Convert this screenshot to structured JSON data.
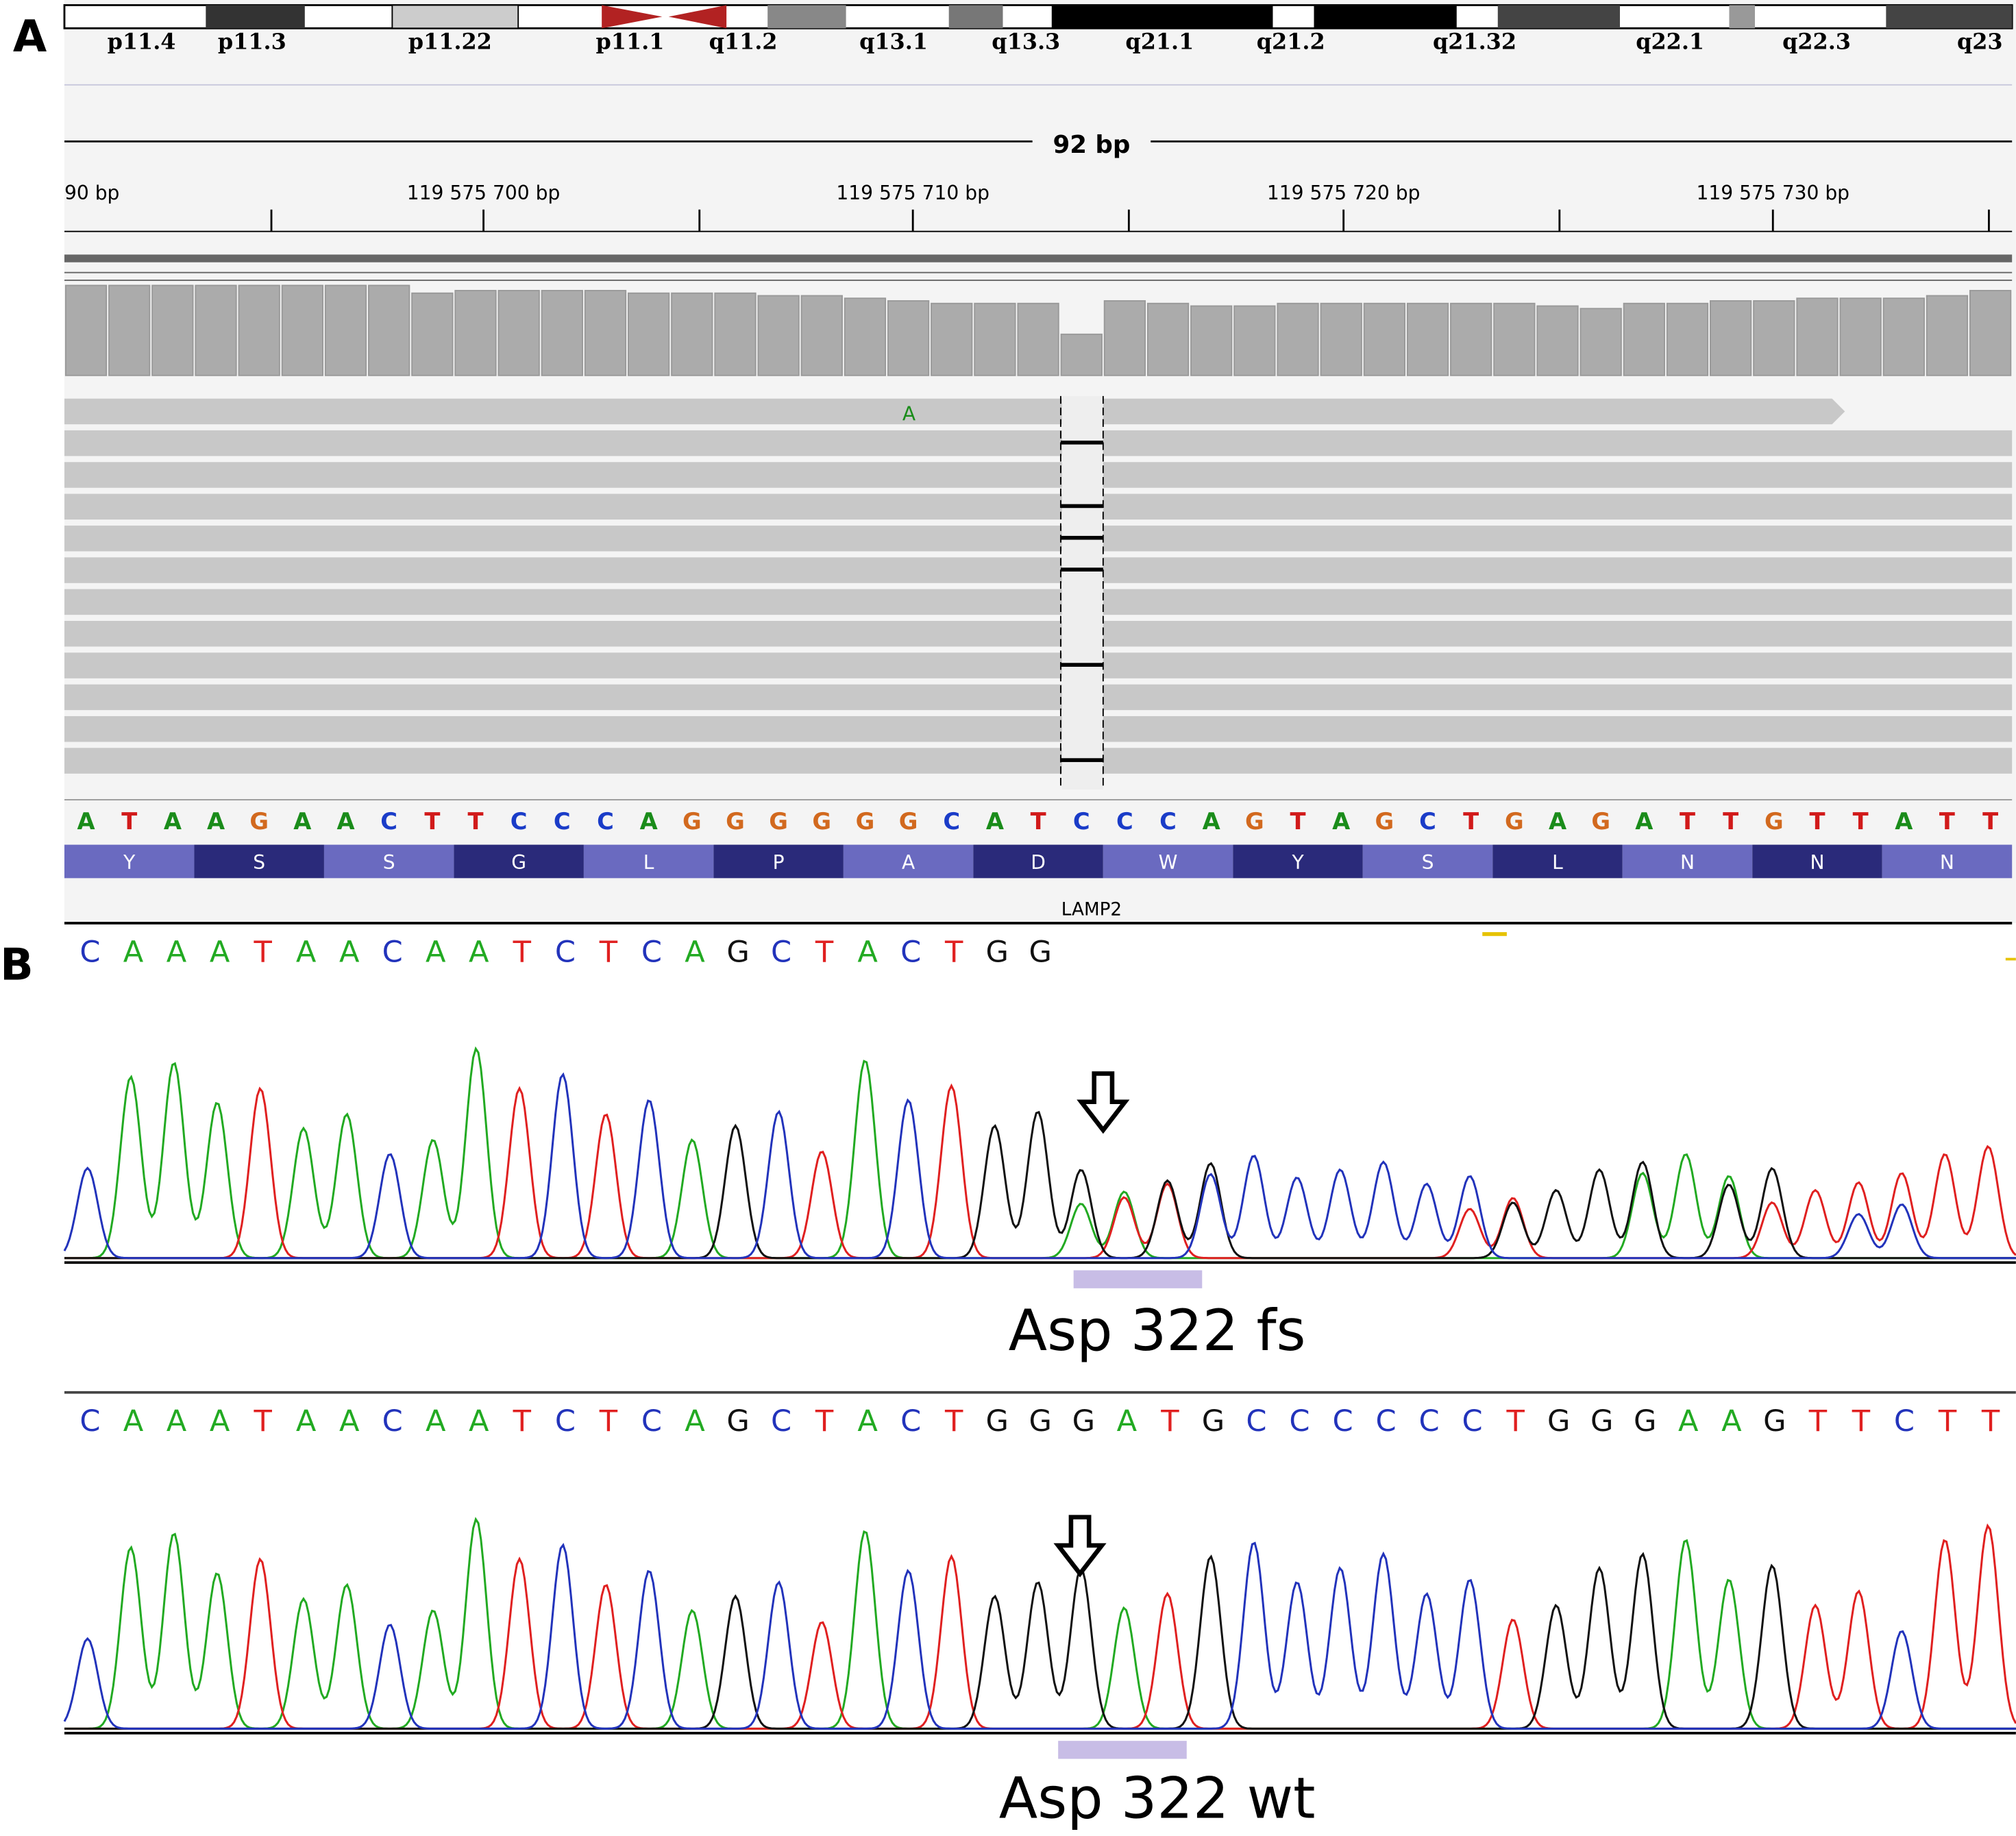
{
  "panel_a": {
    "label": "A",
    "ideogram_bands": [
      "p11.4",
      "p11.3",
      "p11.22",
      "p11.1",
      "q11.2",
      "q13.1",
      "q13.3",
      "q21.1",
      "q21.2",
      "q21.32",
      "q22.1",
      "q22.3",
      "q23"
    ],
    "span": "92 bp",
    "ruler_labels": [
      "90 bp",
      "119 575 700 bp",
      "119 575 710 bp",
      "119 575 720 bp",
      "119 575 730 bp"
    ],
    "read_mismatch": "A",
    "reference": [
      "A",
      "T",
      "A",
      "A",
      "G",
      "A",
      "A",
      "C",
      "T",
      "T",
      "C",
      "C",
      "C",
      "A",
      "G",
      "G",
      "G",
      "G",
      "G",
      "G",
      "C",
      "A",
      "T",
      "C",
      "C",
      "C",
      "A",
      "G",
      "T",
      "A",
      "G",
      "C",
      "T",
      "G",
      "A",
      "G",
      "A",
      "T",
      "T",
      "G",
      "T",
      "T",
      "A",
      "T",
      "T"
    ],
    "amino_acids": [
      "Y",
      "S",
      "S",
      "G",
      "L",
      "P",
      "A",
      "D",
      "W",
      "Y",
      "S",
      "L",
      "N",
      "N",
      "N"
    ],
    "gene": "LAMP2",
    "base_colors": {
      "A": "#1a8c1a",
      "T": "#d11a1a",
      "G": "#d2691e",
      "C": "#1a3cc8"
    }
  },
  "panel_b": {
    "label": "B",
    "mutant_sequence": [
      "C",
      "A",
      "A",
      "A",
      "T",
      "A",
      "A",
      "C",
      "A",
      "A",
      "T",
      "C",
      "T",
      "C",
      "A",
      "G",
      "C",
      "T",
      "A",
      "C",
      "T",
      "G",
      "G"
    ],
    "mutant_caption": "Asp 322 fs",
    "wildtype_sequence": [
      "C",
      "A",
      "A",
      "A",
      "T",
      "A",
      "A",
      "C",
      "A",
      "A",
      "T",
      "C",
      "T",
      "C",
      "A",
      "G",
      "C",
      "T",
      "A",
      "C",
      "T",
      "G",
      "G",
      "G",
      "A",
      "T",
      "G",
      "C",
      "C",
      "C",
      "C",
      "C",
      "C",
      "T",
      "G",
      "G",
      "G",
      "A",
      "A",
      "G",
      "T",
      "T",
      "C",
      "T",
      "T"
    ],
    "wildtype_caption": "Asp 322 wt",
    "base_colors": {
      "A": "#22aa22",
      "T": "#e02020",
      "G": "#111111",
      "C": "#2233bb"
    }
  }
}
